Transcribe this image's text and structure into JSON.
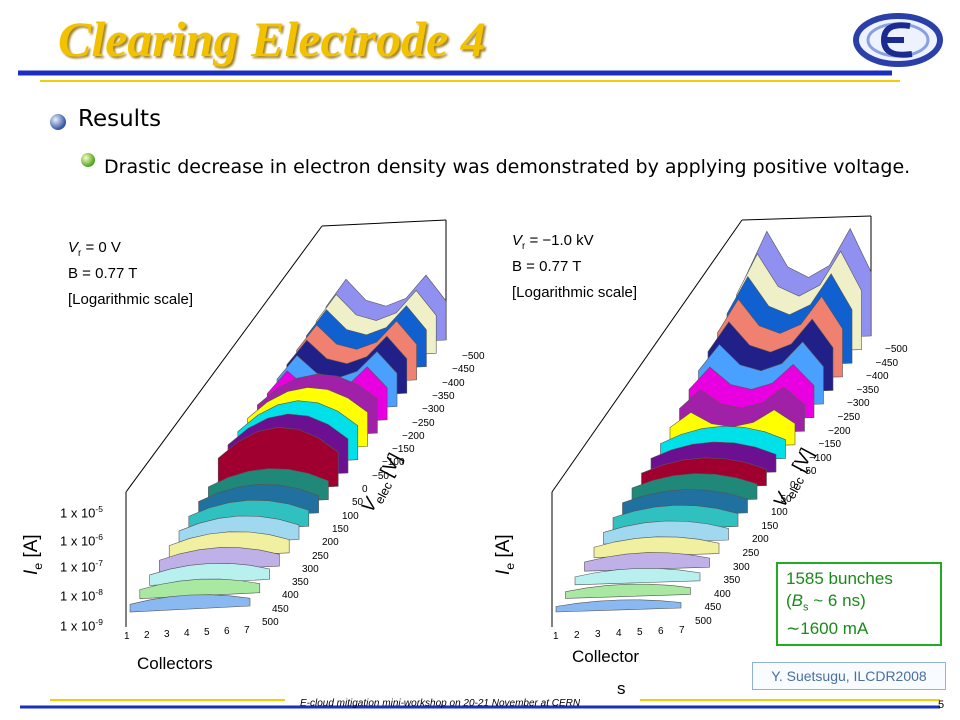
{
  "header": {
    "title": "Clearing Electrode 4",
    "page_number": "5"
  },
  "bullets": [
    "Results",
    "Drastic decrease in electron density was demonstrated by applying positive voltage."
  ],
  "plots": [
    {
      "vr": {
        "symbol": "V",
        "sub": "r",
        "value": "= 0 V"
      },
      "field": "B = 0.77 T",
      "scale": "[Logarithmic scale]",
      "y_axis_label": {
        "symbol": "I",
        "sub": "e",
        "unit": "[A]"
      },
      "y_ticks": [
        {
          "base": "1 x 10",
          "exp": "-5"
        },
        {
          "base": "1 x 10",
          "exp": "-6"
        },
        {
          "base": "1 x 10",
          "exp": "-7"
        },
        {
          "base": "1 x 10",
          "exp": "-8"
        },
        {
          "base": "1 x 10",
          "exp": "-9"
        }
      ],
      "x_ticks": [
        "1",
        "2",
        "3",
        "4",
        "5",
        "6",
        "7"
      ],
      "x_label": [
        "Collectors"
      ],
      "v_axis_label": {
        "symbol": "V",
        "sub": "elec",
        "unit": "[V]"
      },
      "v_ticks": [
        "−500",
        "−450",
        "−400",
        "−350",
        "−300",
        "−250",
        "−200",
        "−150",
        "−100",
        "−50",
        "0",
        "50",
        "100",
        "150",
        "200",
        "250",
        "300",
        "350",
        "400",
        "450",
        "500"
      ]
    },
    {
      "vr": {
        "symbol": "V",
        "sub": "r",
        "value": "= −1.0 kV"
      },
      "field": "B = 0.77 T",
      "scale": "[Logarithmic scale]",
      "y_axis_label": {
        "symbol": "I",
        "sub": "e",
        "unit": "[A]"
      },
      "x_ticks": [
        "1",
        "2",
        "3",
        "4",
        "5",
        "6",
        "7"
      ],
      "x_label": [
        "Collector",
        "s"
      ],
      "v_axis_label": {
        "symbol": "V",
        "sub": "elec",
        "unit": "[V]"
      },
      "v_ticks": [
        "−500",
        "−450",
        "−400",
        "−350",
        "−300",
        "−250",
        "−200",
        "−150",
        "−100",
        "−50",
        "0",
        "50",
        "100",
        "150",
        "200",
        "250",
        "300",
        "350",
        "400",
        "450",
        "500"
      ]
    }
  ],
  "beam_box": {
    "line1": "1585 bunches",
    "line2": {
      "pre": "(",
      "symbol": "B",
      "sub": "s",
      "post": "~ 6 ns)"
    },
    "line3": "∼1600 mA"
  },
  "credit": "Y. Suetsugu, ILCDR2008",
  "footer": "E-cloud mitigation mini-workshop on 20-21 November at CERN"
}
